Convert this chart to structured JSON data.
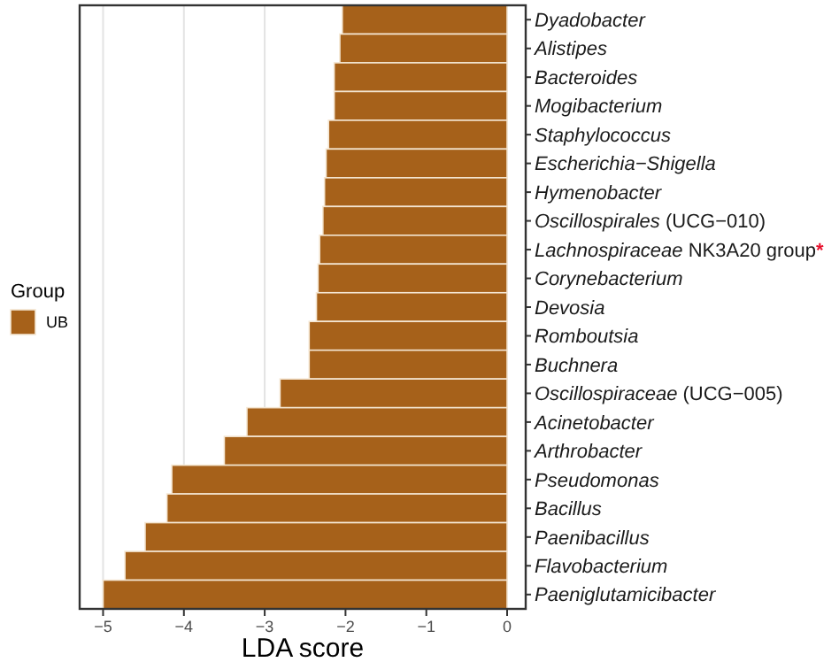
{
  "chart_data": {
    "type": "bar",
    "orientation": "horizontal",
    "xlabel": "LDA score",
    "legend_title": "Group",
    "legend": "left",
    "grid": "x",
    "categories": [
      "Dyadobacter",
      "Alistipes",
      "Bacteroides",
      "Mogibacterium",
      "Staphylococcus",
      "Escherichia−Shigella",
      "Hymenobacter",
      "Oscillospirales (UCG−010)",
      "Lachnospiraceae NK3A20 group*",
      "Corynebacterium",
      "Devosia",
      "Romboutsia",
      "Buchnera",
      "Oscillospiraceae (UCG−005)",
      "Acinetobacter",
      "Arthrobacter",
      "Pseudomonas",
      "Bacillus",
      "Paenibacillus",
      "Flavobacterium",
      "Paeniglutamicibacter"
    ],
    "series": [
      {
        "name": "UB",
        "color": "#a6611a",
        "values": [
          -2.04,
          -2.07,
          -2.14,
          -2.14,
          -2.21,
          -2.24,
          -2.26,
          -2.28,
          -2.32,
          -2.34,
          -2.36,
          -2.45,
          -2.45,
          -2.81,
          -3.22,
          -3.5,
          -4.15,
          -4.21,
          -4.48,
          -4.73,
          -5.0
        ]
      }
    ],
    "xlim": [
      -5.29,
      0.23
    ],
    "xticks": [
      -5,
      -4,
      -3,
      -2,
      -1,
      0
    ]
  }
}
